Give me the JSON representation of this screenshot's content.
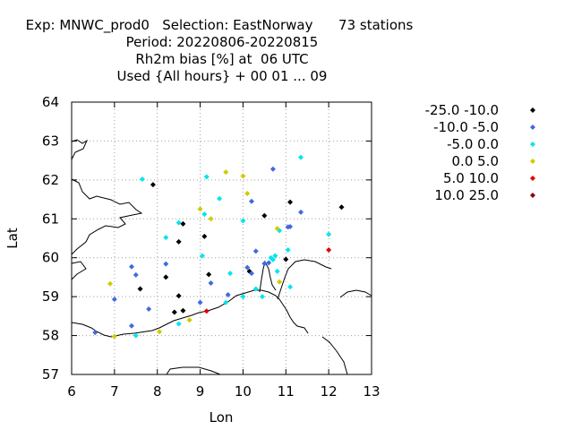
{
  "chart_data": {
    "type": "scatter",
    "title_lines": [
      "Exp: MNWC_prod0   Selection: EastNorway      73 stations",
      "Period: 20220806-20220815",
      "Rh2m bias [%] at  06 UTC",
      "Used {All hours} + 00 01 ... 09"
    ],
    "xlabel": "Lon",
    "ylabel": "Lat",
    "xlim": [
      6,
      13
    ],
    "ylim": [
      57,
      64
    ],
    "xticks": [
      6,
      7,
      8,
      9,
      10,
      11,
      12,
      13
    ],
    "yticks": [
      57,
      58,
      59,
      60,
      61,
      62,
      63,
      64
    ],
    "grid": true,
    "legend_position": "right",
    "series": [
      {
        "name": "-25.0 -10.0",
        "color": "#000000",
        "points": [
          [
            7.9,
            61.88
          ],
          [
            8.5,
            60.41
          ],
          [
            8.6,
            60.87
          ],
          [
            9.1,
            60.55
          ],
          [
            9.2,
            59.57
          ],
          [
            8.2,
            59.5
          ],
          [
            8.5,
            59.02
          ],
          [
            7.6,
            59.2
          ],
          [
            8.4,
            58.6
          ],
          [
            8.6,
            58.64
          ],
          [
            10.5,
            61.08
          ],
          [
            11.1,
            61.43
          ],
          [
            12.3,
            61.3
          ],
          [
            11.0,
            59.96
          ],
          [
            10.15,
            59.65
          ]
        ]
      },
      {
        "name": "-10.0 -5.0",
        "color": "#4169e1",
        "points": [
          [
            10.7,
            62.28
          ],
          [
            11.35,
            61.17
          ],
          [
            10.2,
            61.45
          ],
          [
            11.05,
            60.79
          ],
          [
            11.1,
            60.8
          ],
          [
            10.3,
            60.17
          ],
          [
            8.2,
            59.84
          ],
          [
            7.4,
            59.77
          ],
          [
            7.5,
            59.56
          ],
          [
            7.0,
            58.93
          ],
          [
            7.8,
            58.68
          ],
          [
            7.4,
            58.25
          ],
          [
            6.55,
            58.08
          ],
          [
            9.0,
            58.85
          ],
          [
            9.25,
            59.35
          ],
          [
            9.65,
            59.05
          ],
          [
            10.1,
            59.75
          ],
          [
            10.2,
            59.6
          ],
          [
            10.6,
            59.87
          ],
          [
            10.5,
            59.85
          ]
        ]
      },
      {
        "name": "-5.0 0.0",
        "color": "#00e5ee",
        "points": [
          [
            11.35,
            62.58
          ],
          [
            7.65,
            62.02
          ],
          [
            9.15,
            62.08
          ],
          [
            9.45,
            61.52
          ],
          [
            9.1,
            61.12
          ],
          [
            10.0,
            60.95
          ],
          [
            8.2,
            60.52
          ],
          [
            8.5,
            60.9
          ],
          [
            9.05,
            60.05
          ],
          [
            9.7,
            59.6
          ],
          [
            10.0,
            59.0
          ],
          [
            10.65,
            60.0
          ],
          [
            10.7,
            59.95
          ],
          [
            10.75,
            60.05
          ],
          [
            10.85,
            60.7
          ],
          [
            10.8,
            59.65
          ],
          [
            11.05,
            60.2
          ],
          [
            11.1,
            59.25
          ],
          [
            10.45,
            59.0
          ],
          [
            10.3,
            59.2
          ],
          [
            8.5,
            58.3
          ],
          [
            7.5,
            58.0
          ],
          [
            9.6,
            58.85
          ],
          [
            12.0,
            60.6
          ]
        ]
      },
      {
        "name": "0.0 5.0",
        "color": "#cccc00",
        "points": [
          [
            9.6,
            62.2
          ],
          [
            10.0,
            62.1
          ],
          [
            10.1,
            61.65
          ],
          [
            9.0,
            61.25
          ],
          [
            9.25,
            61.0
          ],
          [
            10.8,
            60.75
          ],
          [
            6.9,
            59.33
          ],
          [
            7.0,
            57.98
          ],
          [
            8.05,
            58.1
          ],
          [
            8.75,
            58.4
          ],
          [
            10.85,
            59.38
          ]
        ]
      },
      {
        "name": "5.0 10.0",
        "color": "#e00000",
        "points": [
          [
            9.15,
            58.63
          ],
          [
            12.0,
            60.2
          ]
        ]
      },
      {
        "name": "10.0 25.0",
        "color": "#8b0000",
        "points": []
      }
    ]
  }
}
